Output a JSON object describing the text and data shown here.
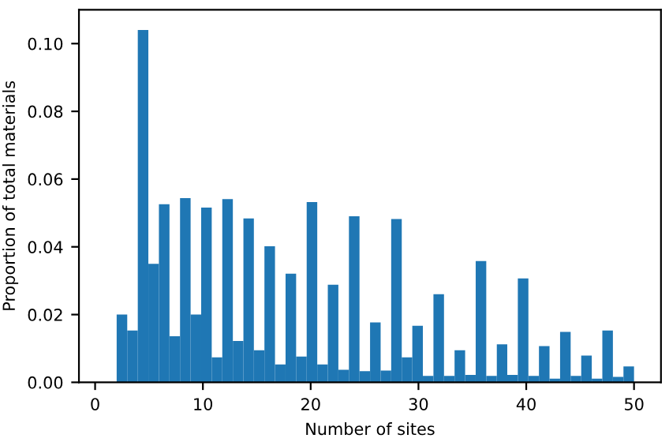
{
  "chart_data": {
    "type": "histogram",
    "xlabel": "Number of sites",
    "ylabel": "Proportion of total materials",
    "color": "#1f77b4",
    "bins": [
      2,
      2.98,
      3.96,
      4.94,
      5.92,
      6.9,
      7.88,
      8.86,
      9.84,
      10.82,
      11.8,
      12.78,
      13.76,
      14.73,
      15.71,
      16.69,
      17.67,
      18.65,
      19.63,
      20.61,
      21.59,
      22.57,
      23.55,
      24.53,
      25.51,
      26.49,
      27.47,
      28.45,
      29.43,
      30.41,
      31.39,
      32.37,
      33.35,
      34.33,
      35.31,
      36.29,
      37.27,
      38.24,
      39.22,
      40.2,
      41.18,
      42.16,
      43.14,
      44.12,
      45.1,
      46.08,
      47.06,
      48.04,
      49.02,
      50
    ],
    "values": [
      0.02,
      0.0153,
      0.104,
      0.035,
      0.0526,
      0.0136,
      0.0544,
      0.02,
      0.0516,
      0.0074,
      0.0541,
      0.0122,
      0.0484,
      0.0095,
      0.0402,
      0.0053,
      0.0321,
      0.0076,
      0.0532,
      0.0053,
      0.0288,
      0.0037,
      0.049,
      0.0033,
      0.0177,
      0.0035,
      0.0482,
      0.0074,
      0.0167,
      0.0019,
      0.026,
      0.0019,
      0.0095,
      0.0022,
      0.0358,
      0.0019,
      0.0112,
      0.0022,
      0.0307,
      0.0019,
      0.0107,
      0.0011,
      0.0149,
      0.0019,
      0.0079,
      0.0011,
      0.0153,
      0.0016,
      0.0047
    ],
    "xlim": [
      -1.5,
      52.5
    ],
    "xticks": [
      0,
      10,
      20,
      30,
      40,
      50
    ],
    "ylim": [
      0,
      0.11
    ],
    "yticks": [
      {
        "value": 0,
        "label": "0.00"
      },
      {
        "value": 0.02,
        "label": "0.02"
      },
      {
        "value": 0.04,
        "label": "0.04"
      },
      {
        "value": 0.06,
        "label": "0.06"
      },
      {
        "value": 0.08,
        "label": "0.08"
      },
      {
        "value": 0.1,
        "label": "0.10"
      }
    ],
    "grid": false
  }
}
